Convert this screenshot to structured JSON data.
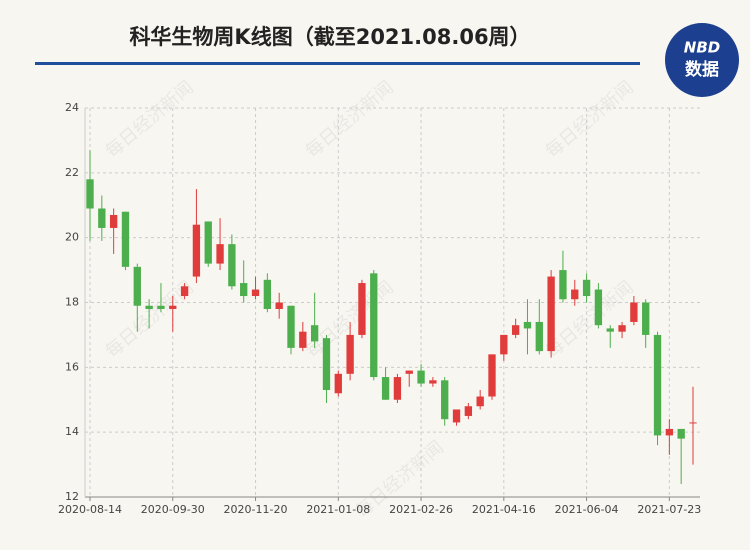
{
  "chart_data": {
    "type": "candlestick",
    "title": "科华生物周K线图（截至2021.08.06周）",
    "logo": {
      "brand": "NBD",
      "sub": "数据"
    },
    "watermark": "每日经济新闻",
    "categories": [
      "2020-08-14",
      null,
      null,
      null,
      null,
      null,
      null,
      "2020-09-30",
      null,
      null,
      null,
      null,
      null,
      null,
      "2020-11-20",
      null,
      null,
      null,
      null,
      null,
      null,
      "2021-01-08",
      null,
      null,
      null,
      null,
      null,
      null,
      "2021-02-26",
      null,
      null,
      null,
      null,
      null,
      null,
      "2021-04-16",
      null,
      null,
      null,
      null,
      null,
      null,
      "2021-06-04",
      null,
      null,
      null,
      null,
      null,
      null,
      "2021-07-23",
      null,
      null
    ],
    "open": [
      21.8,
      20.9,
      20.3,
      20.8,
      19.1,
      17.9,
      17.9,
      17.8,
      18.2,
      18.8,
      20.5,
      19.2,
      19.8,
      18.6,
      18.2,
      18.7,
      17.8,
      17.9,
      16.6,
      17.3,
      16.9,
      15.2,
      15.8,
      17.0,
      18.9,
      15.7,
      15.0,
      15.8,
      15.9,
      15.5,
      15.6,
      14.3,
      14.5,
      14.8,
      15.1,
      16.4,
      17.0,
      17.4,
      17.4,
      16.5,
      19.0,
      18.1,
      18.7,
      18.4,
      17.2,
      17.1,
      17.4,
      18.0,
      17.0,
      13.9,
      14.1,
      14.3
    ],
    "high": [
      22.7,
      21.3,
      20.9,
      20.8,
      19.2,
      18.1,
      18.6,
      18.2,
      18.6,
      21.5,
      20.5,
      20.6,
      20.1,
      19.3,
      18.8,
      18.9,
      18.3,
      17.9,
      17.4,
      18.3,
      17.0,
      15.9,
      17.4,
      18.7,
      19.0,
      16.0,
      15.8,
      15.9,
      16.1,
      15.7,
      15.7,
      14.7,
      14.9,
      15.3,
      16.4,
      17.0,
      17.5,
      18.1,
      18.1,
      19.0,
      19.6,
      18.7,
      18.9,
      18.6,
      17.3,
      17.4,
      18.2,
      18.1,
      17.1,
      14.4,
      14.1,
      15.4
    ],
    "low": [
      19.9,
      19.9,
      19.5,
      19.0,
      17.1,
      17.2,
      17.7,
      17.1,
      18.1,
      18.6,
      19.1,
      19.0,
      18.4,
      18.0,
      18.1,
      17.7,
      17.5,
      16.4,
      16.5,
      16.6,
      14.9,
      15.1,
      15.6,
      16.9,
      15.6,
      15.0,
      14.9,
      15.4,
      15.4,
      15.4,
      14.2,
      14.2,
      14.4,
      14.7,
      15.0,
      16.2,
      16.9,
      16.4,
      16.4,
      16.3,
      18.0,
      17.9,
      18.0,
      17.2,
      16.6,
      16.9,
      17.3,
      16.6,
      13.6,
      13.3,
      12.4,
      13.0
    ],
    "close": [
      20.9,
      20.3,
      20.7,
      19.1,
      17.9,
      17.8,
      17.8,
      17.9,
      18.5,
      20.4,
      19.2,
      19.8,
      18.5,
      18.2,
      18.4,
      17.8,
      18.0,
      16.6,
      17.1,
      16.8,
      15.3,
      15.8,
      17.0,
      18.6,
      15.7,
      15.0,
      15.7,
      15.9,
      15.5,
      15.6,
      14.4,
      14.7,
      14.8,
      15.1,
      16.4,
      17.0,
      17.3,
      17.2,
      16.5,
      18.8,
      18.1,
      18.4,
      18.2,
      17.3,
      17.1,
      17.3,
      18.0,
      17.0,
      13.9,
      14.1,
      13.8,
      14.3
    ],
    "up_color": "#e03c3c",
    "down_color": "#4cae4c",
    "ylim": [
      12,
      24
    ],
    "yticks": [
      12,
      14,
      16,
      18,
      20,
      22,
      24
    ],
    "grid": true
  }
}
